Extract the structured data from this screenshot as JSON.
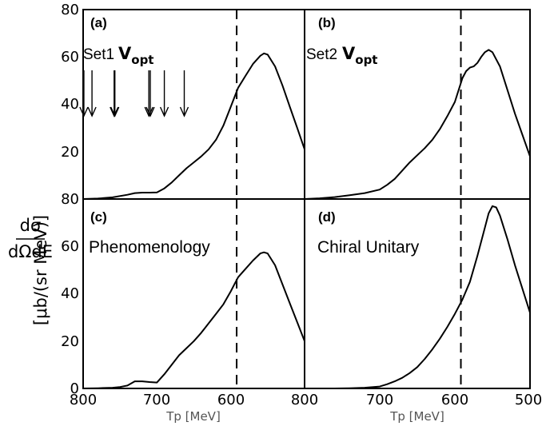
{
  "chart_data": [
    {
      "panel": "a",
      "type": "line",
      "label": "(a)",
      "set_label": "Set1",
      "vopt_main": "V",
      "vopt_sub": "opt",
      "xlim": [
        800,
        500
      ],
      "ylim": [
        0,
        80
      ],
      "x": [
        800,
        780,
        760,
        740,
        730,
        720,
        710,
        700,
        690,
        680,
        670,
        660,
        650,
        640,
        630,
        620,
        610,
        600,
        595,
        590,
        580,
        570,
        560,
        555,
        550,
        540,
        530,
        520,
        510,
        500
      ],
      "y": [
        0,
        0.2,
        0.7,
        1.8,
        2.5,
        2.7,
        2.7,
        2.8,
        4.5,
        7,
        10,
        13,
        15.5,
        18,
        21,
        25,
        31,
        39,
        43,
        47,
        52,
        57,
        60.5,
        61.5,
        61,
        56,
        48,
        39,
        30,
        21
      ],
      "arrows_x": [
        799,
        788,
        758,
        757,
        711,
        709,
        690,
        663
      ],
      "dashed_x": 592
    },
    {
      "panel": "b",
      "type": "line",
      "label": "(b)",
      "set_label": "Set2",
      "vopt_main": "V",
      "vopt_sub": "opt",
      "xlim": [
        800,
        500
      ],
      "ylim": [
        0,
        80
      ],
      "x": [
        800,
        780,
        760,
        740,
        720,
        700,
        690,
        680,
        670,
        660,
        650,
        640,
        630,
        620,
        610,
        600,
        595,
        590,
        585,
        580,
        575,
        570,
        565,
        560,
        555,
        550,
        540,
        530,
        520,
        510,
        500
      ],
      "y": [
        0,
        0.3,
        0.8,
        1.6,
        2.5,
        4,
        6,
        8.5,
        12,
        15.5,
        18.5,
        21.5,
        25,
        29.5,
        35,
        41,
        46,
        51,
        54,
        55.5,
        56,
        57.5,
        60,
        62,
        63,
        62,
        56,
        46,
        36,
        27,
        18
      ],
      "dashed_x": 592
    },
    {
      "panel": "c",
      "type": "line",
      "label": "(c)",
      "text": "Phenomenology",
      "xlim": [
        800,
        500
      ],
      "ylim": [
        0,
        80
      ],
      "x": [
        800,
        780,
        760,
        750,
        740,
        730,
        720,
        710,
        700,
        690,
        680,
        670,
        660,
        650,
        640,
        630,
        620,
        610,
        600,
        595,
        590,
        580,
        570,
        560,
        555,
        550,
        540,
        530,
        520,
        510,
        500
      ],
      "y": [
        0,
        0.1,
        0.3,
        0.6,
        1.2,
        3,
        3,
        2.7,
        2.5,
        6,
        10,
        14,
        17,
        20,
        23.5,
        27.5,
        31.5,
        35.5,
        41,
        44,
        47,
        50.5,
        54,
        57,
        57.5,
        57,
        52,
        44,
        36,
        28,
        20
      ],
      "dashed_x": 592
    },
    {
      "panel": "d",
      "type": "line",
      "label": "(d)",
      "text": "Chiral Unitary",
      "xlim": [
        800,
        500
      ],
      "ylim": [
        0,
        80
      ],
      "x": [
        800,
        760,
        740,
        720,
        700,
        690,
        680,
        670,
        660,
        650,
        640,
        630,
        620,
        610,
        600,
        590,
        580,
        570,
        560,
        555,
        550,
        545,
        540,
        530,
        520,
        510,
        500
      ],
      "y": [
        0,
        0,
        0.1,
        0.3,
        0.8,
        1.8,
        3,
        4.5,
        6.5,
        9,
        12.5,
        16.5,
        21,
        26,
        31.5,
        37.5,
        45,
        56,
        68,
        74,
        77,
        76.5,
        73,
        63,
        52,
        42,
        32
      ],
      "dashed_x": 592
    }
  ],
  "yticks": [
    "0",
    "20",
    "40",
    "60",
    "80"
  ],
  "xticks_left": [
    "800",
    "700",
    "600",
    "800"
  ],
  "xticks_right": [
    "700",
    "600",
    "500"
  ],
  "xlabel": "Tp [MeV]",
  "ylabel_num": "dσ",
  "ylabel_den": "dΩdE",
  "ylabel_unit": "[μb/(sr MeV)]",
  "colors": {
    "line": "#000000",
    "axis_text": "#555555"
  }
}
